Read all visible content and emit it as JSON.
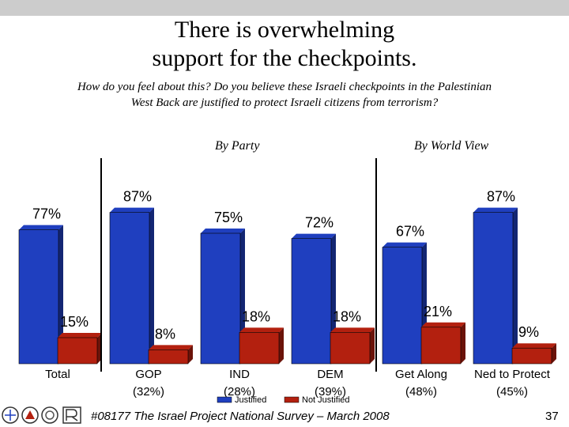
{
  "slide": {
    "title_line1": "There is overwhelming",
    "title_line2": "support for the checkpoints.",
    "question_line1": "How do you feel about this?  Do you believe these Israeli checkpoints in the Palestinian",
    "question_line2": "West Back are justified to protect Israeli citizens from terrorism?",
    "section_party": "By Party",
    "section_worldview": "By World View",
    "footer": "#08177 The Israel Project National Survey – March 2008",
    "page_number": "37"
  },
  "chart_data": {
    "type": "bar",
    "categories": [
      {
        "label": "Total",
        "sublabel": ""
      },
      {
        "label": "GOP",
        "sublabel": "(32%)"
      },
      {
        "label": "IND",
        "sublabel": "(28%)"
      },
      {
        "label": "DEM",
        "sublabel": "(39%)"
      },
      {
        "label": "Get Along",
        "sublabel": "(48%)"
      },
      {
        "label": "Ned to Protect",
        "sublabel": "(45%)"
      }
    ],
    "series": [
      {
        "name": "Justified",
        "values": [
          77,
          87,
          75,
          72,
          67,
          87
        ],
        "labels": [
          "77%",
          "87%",
          "75%",
          "72%",
          "67%",
          "87%"
        ],
        "color": "#1f3fbf"
      },
      {
        "name": "Not Justified",
        "values": [
          15,
          8,
          18,
          18,
          21,
          9
        ],
        "labels": [
          "15%",
          "8%",
          "18%",
          "18%",
          "21%",
          "9%"
        ],
        "color": "#b3200f"
      }
    ],
    "ylim": [
      0,
      100
    ],
    "legend": "bottom-center",
    "grid": false
  }
}
